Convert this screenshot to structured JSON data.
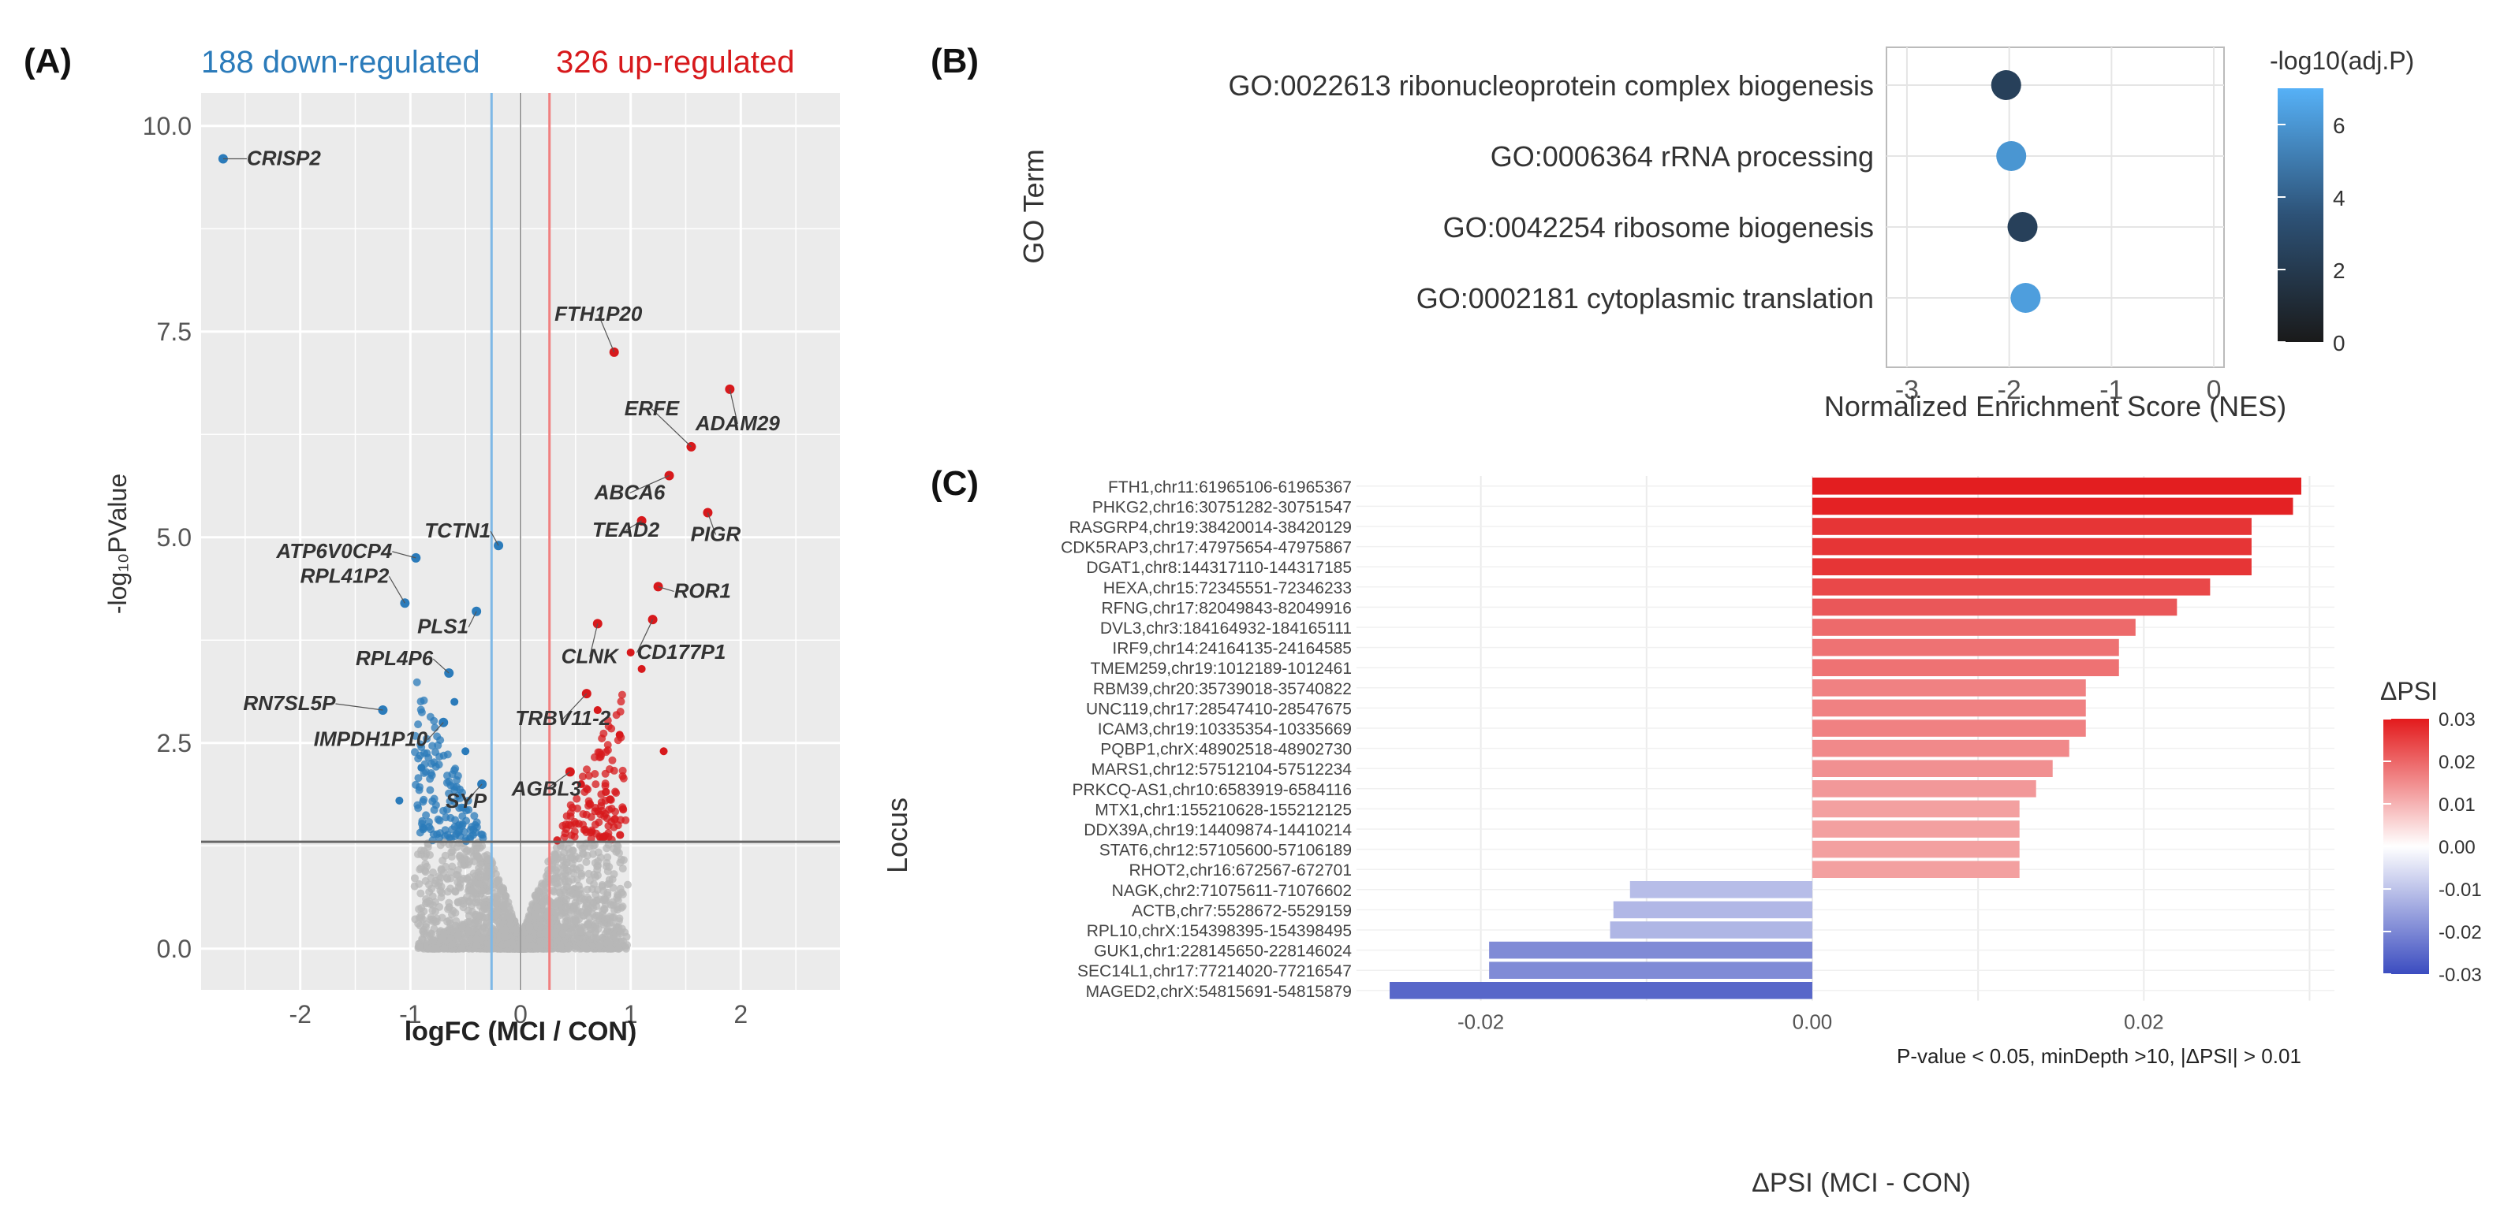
{
  "colors": {
    "up": "#d7191c",
    "down": "#2b7bba",
    "ns": "#b7b7b7",
    "panel_bg": "#ebebeb",
    "grid": "#ffffff",
    "threshold_up": "#f08080",
    "threshold_down": "#7fb8e6"
  },
  "chart_data": [
    {
      "panel": "A",
      "panel_label": "(A)",
      "type": "scatter",
      "title_down": "188 down-regulated",
      "title_up": "326 up-regulated",
      "xlabel": "logFC (MCI / CON)",
      "ylabel": "-log₁₀PValue",
      "xlim": [
        -2.9,
        2.9
      ],
      "ylim": [
        -0.5,
        10.4
      ],
      "xticks": [
        -2,
        -1,
        0,
        1,
        2
      ],
      "yticks": [
        0.0,
        2.5,
        5.0,
        7.5,
        10.0
      ],
      "ytick_labels": [
        "0.0",
        "2.5",
        "5.0",
        "7.5",
        "10.0"
      ],
      "fc_threshold": 0.263,
      "p_line": 1.3,
      "grid": true,
      "labeled_points": [
        {
          "label": "CRISP2",
          "x": -2.7,
          "y": 9.6,
          "group": "down"
        },
        {
          "label": "FTH1P20",
          "x": 0.85,
          "y": 7.25,
          "group": "up"
        },
        {
          "label": "ADAM29",
          "x": 1.9,
          "y": 6.8,
          "group": "up"
        },
        {
          "label": "ERFE",
          "x": 1.55,
          "y": 6.1,
          "group": "up"
        },
        {
          "label": "ABCA6",
          "x": 1.35,
          "y": 5.75,
          "group": "up"
        },
        {
          "label": "PIGR",
          "x": 1.7,
          "y": 5.3,
          "group": "up"
        },
        {
          "label": "TEAD2",
          "x": 1.1,
          "y": 5.2,
          "group": "up"
        },
        {
          "label": "TCTN1",
          "x": -0.2,
          "y": 4.9,
          "group": "down"
        },
        {
          "label": "ATP6V0CP4",
          "x": -0.95,
          "y": 4.75,
          "group": "down"
        },
        {
          "label": "ROR1",
          "x": 1.25,
          "y": 4.4,
          "group": "up"
        },
        {
          "label": "RPL41P2",
          "x": -1.05,
          "y": 4.2,
          "group": "down"
        },
        {
          "label": "PLS1",
          "x": -0.4,
          "y": 4.1,
          "group": "down"
        },
        {
          "label": "CLNK",
          "x": 0.7,
          "y": 3.95,
          "group": "up"
        },
        {
          "label": "CD177P1",
          "x": 1.2,
          "y": 4.0,
          "group": "up"
        },
        {
          "label": "RPL4P6",
          "x": -0.65,
          "y": 3.35,
          "group": "down"
        },
        {
          "label": "RN7SL5P",
          "x": -1.25,
          "y": 2.9,
          "group": "down"
        },
        {
          "label": "TRBV11-2",
          "x": 0.6,
          "y": 3.1,
          "group": "up"
        },
        {
          "label": "IMPDH1P10",
          "x": -0.7,
          "y": 2.75,
          "group": "down"
        },
        {
          "label": "AGBL3",
          "x": 0.45,
          "y": 2.15,
          "group": "up"
        },
        {
          "label": "SYP",
          "x": -0.35,
          "y": 2.0,
          "group": "down"
        }
      ]
    },
    {
      "panel": "B",
      "panel_label": "(B)",
      "type": "scatter",
      "xlabel": "Normalized Enrichment Score (NES)",
      "ylabel": "GO Term",
      "xlim": [
        -3.2,
        0.1
      ],
      "xticks": [
        -3,
        -2,
        -1,
        0
      ],
      "legend_title": "-log10(adj.P)",
      "legend_ticks": [
        0,
        2,
        4,
        6
      ],
      "legend_range": [
        0,
        7
      ],
      "grid": true,
      "terms": [
        {
          "label": "GO:0022613 ribonucleoprotein complex biogenesis",
          "nes": -2.03,
          "neglog10p": 2.4
        },
        {
          "label": "GO:0006364 rRNA processing",
          "nes": -1.98,
          "neglog10p": 6.0
        },
        {
          "label": "GO:0042254 ribosome biogenesis",
          "nes": -1.87,
          "neglog10p": 2.4
        },
        {
          "label": "GO:0002181 cytoplasmic translation",
          "nes": -1.84,
          "neglog10p": 6.3
        }
      ]
    },
    {
      "panel": "C",
      "panel_label": "(C)",
      "type": "bar",
      "orientation": "horizontal",
      "xlabel": "ΔPSI (MCI - CON)",
      "ylabel": "Locus",
      "xlim": [
        -0.0275,
        0.0315
      ],
      "xticks": [
        -0.02,
        0.0,
        0.02
      ],
      "xtick_labels": [
        "-0.02",
        "0.00",
        "0.02"
      ],
      "annotation": "P-value < 0.05, minDepth >10, |ΔPSI| > 0.01",
      "legend_title": "ΔPSI",
      "legend_ticks": [
        0.03,
        0.02,
        0.01,
        0.0,
        -0.01,
        -0.02,
        -0.03
      ],
      "legend_tick_labels": [
        "0.03",
        "0.02",
        "0.01",
        "0.00",
        "-0.01",
        "-0.02",
        "-0.03"
      ],
      "grid": true,
      "categories": [
        "FTH1,chr11:61965106-61965367",
        "PHKG2,chr16:30751282-30751547",
        "RASGRP4,chr19:38420014-38420129",
        "CDK5RAP3,chr17:47975654-47975867",
        "DGAT1,chr8:144317110-144317185",
        "HEXA,chr15:72345551-72346233",
        "RFNG,chr17:82049843-82049916",
        "DVL3,chr3:184164932-184165111",
        "IRF9,chr14:24164135-24164585",
        "TMEM259,chr19:1012189-1012461",
        "RBM39,chr20:35739018-35740822",
        "UNC119,chr17:28547410-28547675",
        "ICAM3,chr19:10335354-10335669",
        "PQBP1,chrX:48902518-48902730",
        "MARS1,chr12:57512104-57512234",
        "PRKCQ-AS1,chr10:6583919-6584116",
        "MTX1,chr1:155210628-155212125",
        "DDX39A,chr19:14409874-14410214",
        "STAT6,chr12:57105600-57106189",
        "RHOT2,chr16:672567-672701",
        "NAGK,chr2:71075611-71076602",
        "ACTB,chr7:5528672-5529159",
        "RPL10,chrX:154398395-154398495",
        "GUK1,chr1:228145650-228146024",
        "SEC14L1,chr17:77214020-77216547",
        "MAGED2,chrX:54815691-54815879"
      ],
      "values": [
        0.0295,
        0.029,
        0.0265,
        0.0265,
        0.0265,
        0.024,
        0.022,
        0.0195,
        0.0185,
        0.0185,
        0.0165,
        0.0165,
        0.0165,
        0.0155,
        0.0145,
        0.0135,
        0.0125,
        0.0125,
        0.0125,
        0.0125,
        -0.011,
        -0.012,
        -0.0122,
        -0.0195,
        -0.0195,
        -0.0255
      ]
    }
  ]
}
